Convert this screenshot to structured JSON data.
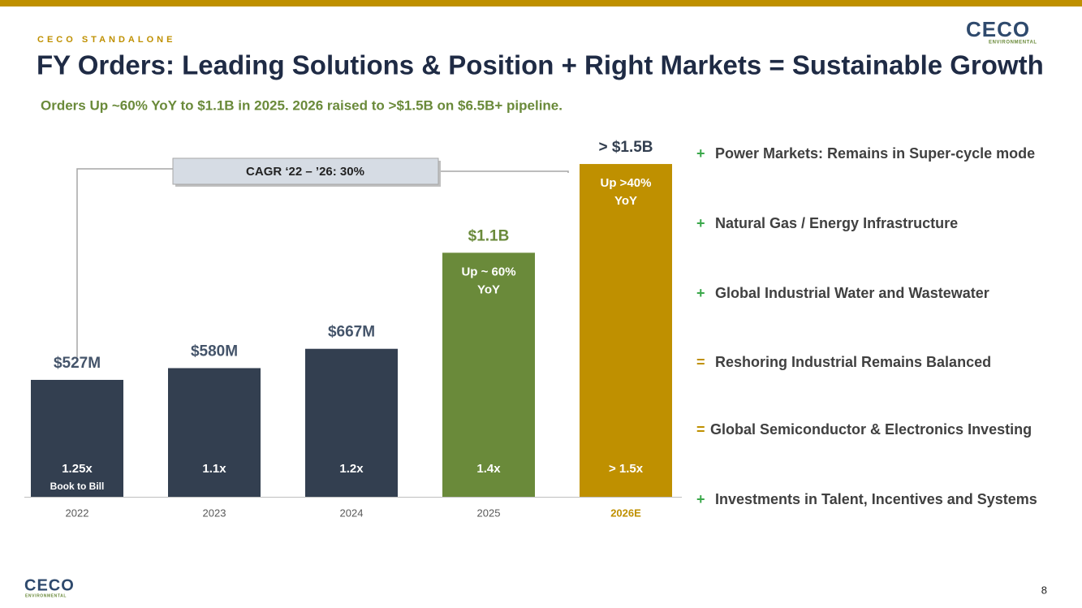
{
  "header": {
    "kicker": "CECO STANDALONE",
    "title": "FY Orders: Leading Solutions & Position + Right Markets = Sustainable Growth",
    "subtitle": "Orders Up ~60% YoY to $1.1B in 2025. 2026 raised to >$1.5B on $6.5B+ pipeline.",
    "logo": "CECO",
    "logo_sub": "ENVIRONMENTAL"
  },
  "chart_data": {
    "type": "bar",
    "categories": [
      "2022",
      "2023",
      "2024",
      "2025",
      "2026E"
    ],
    "category_colors": [
      "#595959",
      "#595959",
      "#595959",
      "#595959",
      "#bf9000"
    ],
    "values": [
      527,
      580,
      667,
      1100,
      1500
    ],
    "value_labels": [
      "$527M",
      "$580M",
      "$667M",
      "$1.1B",
      "> $1.5B"
    ],
    "value_label_colors": [
      "#44546a",
      "#44546a",
      "#44546a",
      "#6a8a3a",
      "#333f50"
    ],
    "colors": [
      "#333f50",
      "#333f50",
      "#333f50",
      "#6a8a3a",
      "#bf9000"
    ],
    "growth_notes": [
      null,
      null,
      null,
      [
        "Up ~ 60%",
        "YoY"
      ],
      [
        "Up  >40%",
        "YoY"
      ]
    ],
    "bar_notes": [
      "1.25x",
      "1.1x",
      "1.2x",
      "1.4x",
      "> 1.5x"
    ],
    "bar_note_caption": "Book to Bill",
    "cagr_label": "CAGR ‘22 – ’26:  30%"
  },
  "drivers": [
    {
      "symbol": "+",
      "color": "#3aa84a",
      "text": "Power Markets: Remains in Super-cycle mode"
    },
    {
      "symbol": "+",
      "color": "#3aa84a",
      "text": "Natural Gas / Energy Infrastructure"
    },
    {
      "symbol": "+",
      "color": "#3aa84a",
      "text": "Global Industrial Water and Wastewater"
    },
    {
      "symbol": "=",
      "color": "#bf9000",
      "text": "Reshoring Industrial Remains Balanced"
    },
    {
      "symbol": "=",
      "color": "#bf9000",
      "text": "Global Semiconductor & Electronics Investing"
    },
    {
      "symbol": "+",
      "color": "#3aa84a",
      "text": "Investments in Talent, Incentives and Systems"
    }
  ],
  "footer": {
    "logo": "CECO",
    "logo_sub": "ENVIRONMENTAL",
    "page_number": "8"
  }
}
